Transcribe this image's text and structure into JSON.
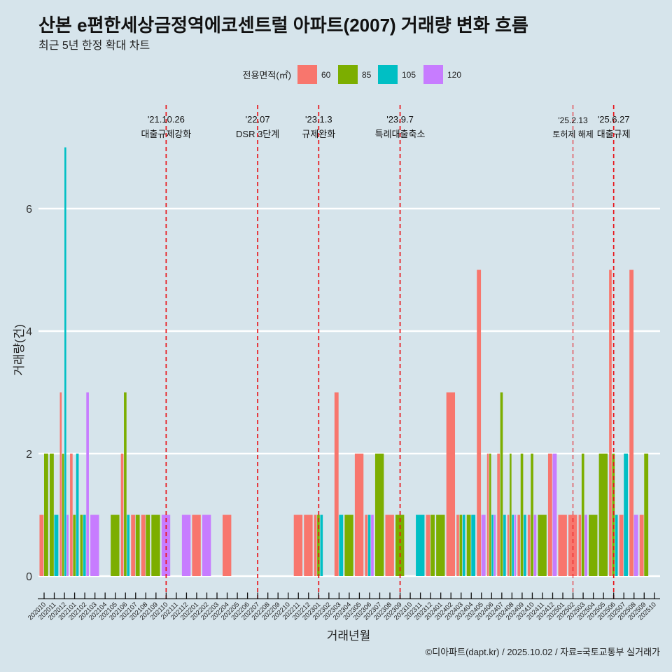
{
  "chart_data": {
    "type": "bar",
    "title": "산본 e편한세상금정역에코센트럴 아파트(2007) 거래량 변화 흐름",
    "subtitle": "최근 5년 한정 확대 차트",
    "xlabel": "거래년월",
    "ylabel": "거래량(건)",
    "caption": "©디아파트(dapt.kr) / 2025.10.02 / 자료=국토교통부 실거래가",
    "ylim": [
      -0.37,
      7.9
    ],
    "yticks": [
      0,
      2,
      4,
      6
    ],
    "ytick_labels": [
      "0",
      "2",
      "4",
      "6"
    ],
    "grid": true,
    "legend": {
      "position": "top",
      "title": "전용면적(㎡)",
      "items": [
        {
          "label": "60",
          "color": "#F8766D"
        },
        {
          "label": "85",
          "color": "#7CAE00"
        },
        {
          "label": "105",
          "color": "#00BFC4"
        },
        {
          "label": "120",
          "color": "#C77CFF"
        }
      ]
    },
    "categories": [
      "202010",
      "202011",
      "202012",
      "202101",
      "202102",
      "202103",
      "202104",
      "202105",
      "202106",
      "202107",
      "202108",
      "202109",
      "202110",
      "202111",
      "202112",
      "202201",
      "202202",
      "202203",
      "202204",
      "202205",
      "202206",
      "202207",
      "202208",
      "202209",
      "202210",
      "202211",
      "202212",
      "202301",
      "202302",
      "202303",
      "202304",
      "202305",
      "202306",
      "202307",
      "202308",
      "202309",
      "202310",
      "202311",
      "202312",
      "202401",
      "202402",
      "202403",
      "202404",
      "202405",
      "202406",
      "202407",
      "202408",
      "202409",
      "202410",
      "202411",
      "202412",
      "202501",
      "202502",
      "202503",
      "202504",
      "202505",
      "202506",
      "202507",
      "202508",
      "202509",
      "202510"
    ],
    "series": [
      {
        "name": "60",
        "color": "#F8766D",
        "values": [
          1,
          null,
          3,
          2,
          null,
          null,
          null,
          null,
          2,
          1,
          1,
          null,
          null,
          null,
          null,
          1,
          null,
          null,
          1,
          null,
          null,
          null,
          null,
          null,
          null,
          1,
          1,
          1,
          null,
          3,
          null,
          2,
          1,
          null,
          1,
          null,
          null,
          null,
          1,
          null,
          3,
          1,
          null,
          5,
          2,
          2,
          1,
          1,
          1,
          null,
          2,
          1,
          1,
          1,
          null,
          null,
          5,
          1,
          5,
          1,
          null
        ]
      },
      {
        "name": "85",
        "color": "#7CAE00",
        "values": [
          2,
          2,
          2,
          1,
          1,
          null,
          null,
          1,
          3,
          1,
          1,
          1,
          null,
          null,
          null,
          null,
          null,
          null,
          null,
          null,
          null,
          null,
          null,
          null,
          null,
          null,
          null,
          1,
          null,
          null,
          1,
          null,
          null,
          2,
          null,
          1,
          null,
          null,
          1,
          1,
          null,
          1,
          1,
          null,
          2,
          3,
          2,
          2,
          2,
          1,
          null,
          null,
          null,
          2,
          1,
          2,
          2,
          null,
          null,
          2,
          null
        ]
      },
      {
        "name": "105",
        "color": "#00BFC4",
        "values": [
          null,
          1,
          7,
          2,
          1,
          null,
          null,
          null,
          1,
          null,
          null,
          null,
          null,
          null,
          null,
          null,
          null,
          null,
          null,
          null,
          null,
          null,
          null,
          null,
          null,
          null,
          null,
          1,
          null,
          1,
          null,
          null,
          1,
          null,
          null,
          null,
          null,
          1,
          null,
          null,
          null,
          1,
          1,
          null,
          1,
          1,
          1,
          1,
          null,
          null,
          null,
          null,
          null,
          null,
          null,
          null,
          1,
          2,
          null,
          null,
          null
        ]
      },
      {
        "name": "120",
        "color": "#C77CFF",
        "values": [
          null,
          null,
          1,
          null,
          3,
          1,
          null,
          null,
          null,
          null,
          null,
          null,
          1,
          null,
          1,
          null,
          1,
          null,
          null,
          null,
          null,
          null,
          null,
          null,
          null,
          null,
          null,
          null,
          null,
          null,
          null,
          null,
          1,
          null,
          null,
          null,
          null,
          null,
          null,
          null,
          null,
          null,
          null,
          1,
          1,
          null,
          1,
          null,
          1,
          null,
          2,
          null,
          null,
          1,
          null,
          null,
          null,
          null,
          1,
          null,
          null
        ]
      }
    ],
    "annotations": [
      {
        "x": "202110",
        "date": "'21.10.26",
        "label": "대출규제강화",
        "minor": false
      },
      {
        "x": "202207",
        "date": "'22.07",
        "label": "DSR 3단계",
        "minor": false
      },
      {
        "x": "202301",
        "date": "'23.1.3",
        "label": "규제완화",
        "minor": false
      },
      {
        "x": "202309",
        "date": "'23.9.7",
        "label": "특례대출축소",
        "minor": false
      },
      {
        "x": "202502",
        "date": "'25.2.13",
        "label": "토허제 해제",
        "minor": true
      },
      {
        "x": "202506",
        "date": "'25.6.27",
        "label": "대출규제",
        "minor": false
      }
    ],
    "annotation_line_color": "#E8141A"
  }
}
